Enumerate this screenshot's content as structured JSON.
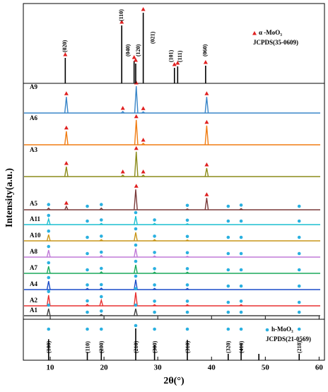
{
  "chart_data": {
    "type": "line",
    "ylabel": "Intensity(a.u.)",
    "xlabel": "2θ(°)",
    "xlim": [
      5,
      61
    ],
    "xticks": [
      10,
      20,
      30,
      40,
      50,
      60
    ],
    "series": [
      {
        "name": "A9",
        "color": "#3a86c8",
        "x": [
          13,
          23.5,
          26,
          27.3,
          39.1
        ],
        "values": [
          57,
          5,
          95,
          4,
          57
        ],
        "triangle_markers": [
          13,
          23.5,
          26,
          27.3,
          39.1
        ],
        "dot_markers": []
      },
      {
        "name": "A6",
        "color": "#f07c12",
        "x": [
          13,
          26,
          27.3,
          39.1
        ],
        "values": [
          48,
          88,
          5,
          68
        ],
        "triangle_markers": [
          13,
          26,
          27.3,
          39.1
        ],
        "dot_markers": []
      },
      {
        "name": "A3",
        "color": "#8b8b1a",
        "x": [
          13,
          23.5,
          26,
          27.3,
          39.1
        ],
        "values": [
          35,
          5,
          88,
          5,
          30
        ],
        "triangle_markers": [
          13,
          23.5,
          26,
          27.3,
          39.1
        ],
        "dot_markers": []
      },
      {
        "name": "A5",
        "color": "#7a3a3a",
        "x": [
          9.7,
          13,
          19.5,
          25.9,
          35.5,
          39.1,
          45.5
        ],
        "values": [
          6,
          12,
          6,
          72,
          3,
          42,
          4
        ],
        "triangle_markers": [
          13,
          26,
          39.1
        ],
        "dot_markers": [
          9.7,
          16.9,
          19.5,
          35.5,
          43.1,
          45.5,
          56.3
        ]
      },
      {
        "name": "A11",
        "color": "#1bbfd0",
        "x": [
          9.7,
          19.5,
          25.9,
          29.4,
          35.5
        ],
        "values": [
          20,
          4,
          30,
          4,
          3
        ],
        "triangle_markers": [],
        "dot_markers": [
          9.7,
          16.9,
          19.5,
          25.9,
          29.4,
          35.5,
          43.1,
          45.5,
          56.3
        ]
      },
      {
        "name": "A10",
        "color": "#c8961a",
        "x": [
          9.7,
          19.5,
          25.9,
          29.4,
          35.5
        ],
        "values": [
          22,
          4,
          30,
          4,
          3
        ],
        "triangle_markers": [],
        "dot_markers": [
          9.7,
          16.9,
          19.5,
          25.9,
          29.4,
          35.5,
          43.1,
          45.5,
          56.3
        ]
      },
      {
        "name": "A8",
        "color": "#c07ad8",
        "x": [
          9.7,
          19.5,
          25.9,
          29.4,
          35.5
        ],
        "values": [
          25,
          5,
          30,
          4,
          3
        ],
        "triangle_markers": [],
        "dot_markers": [
          9.7,
          16.9,
          19.5,
          25.9,
          29.4,
          35.5,
          43.1,
          45.5,
          56.3
        ]
      },
      {
        "name": "A7",
        "color": "#1aa85a",
        "x": [
          9.7,
          19.5,
          25.9,
          29.4,
          35.5
        ],
        "values": [
          25,
          5,
          30,
          4,
          4
        ],
        "triangle_markers": [],
        "dot_markers": [
          9.7,
          16.9,
          19.5,
          25.9,
          29.4,
          35.5,
          43.1,
          45.5,
          56.3
        ]
      },
      {
        "name": "A4",
        "color": "#1a4cc8",
        "x": [
          9.7,
          16.9,
          19.5,
          25.9,
          29.4,
          35.5
        ],
        "values": [
          30,
          4,
          5,
          35,
          4,
          4
        ],
        "triangle_markers": [],
        "dot_markers": [
          9.7,
          16.9,
          19.5,
          25.9,
          29.4,
          35.5,
          43.1,
          45.5,
          56.3
        ]
      },
      {
        "name": "A2",
        "color": "#e83030",
        "x": [
          9.7,
          16.9,
          19.5,
          25.9,
          29.4,
          35.5,
          45.5
        ],
        "values": [
          38,
          5,
          20,
          48,
          4,
          4,
          4
        ],
        "triangle_markers": [],
        "dot_markers": [
          9.7,
          16.9,
          19.5,
          25.9,
          29.4,
          35.5,
          43.1,
          45.5,
          56.3
        ]
      },
      {
        "name": "A1",
        "color": "#404040",
        "x": [
          9.7,
          19.5,
          25.9
        ],
        "values": [
          25,
          4,
          25
        ],
        "triangle_markers": [],
        "dot_markers": [
          9.7,
          16.9,
          19.5,
          25.9,
          29.4,
          35.5,
          43.1,
          45.5,
          56.3
        ]
      }
    ],
    "references": [
      {
        "name": "α -MoO₃",
        "source": "JCPDS(35-0609)",
        "color": "#000000",
        "marker_color": "#e02020",
        "x": [
          12.8,
          23.3,
          25.6,
          25.9,
          27.3,
          33.1,
          33.7,
          38.9
        ],
        "values": [
          36,
          82,
          32,
          28,
          100,
          22,
          24,
          25
        ],
        "labels": [
          "(020)",
          "(110)",
          "(040)",
          "(120)",
          "(021)",
          "(101)",
          "(111)",
          "(060)"
        ]
      },
      {
        "name": "h-MoO₃",
        "source": "JCPDS(21-0569)",
        "color": "#000000",
        "marker_color": "#2ab0e0",
        "x": [
          9.7,
          16.9,
          19.5,
          25.9,
          29.4,
          35.5,
          43.1,
          45.5,
          48.8,
          56.3
        ],
        "values": [
          33,
          13,
          18,
          50,
          24,
          32,
          10,
          26,
          10,
          10
        ],
        "labels": [
          "(100)",
          "(110)",
          "(200)",
          "(210)",
          "(300)",
          "(310)",
          "(320)",
          "(410)",
          null,
          "(218)"
        ]
      }
    ]
  }
}
